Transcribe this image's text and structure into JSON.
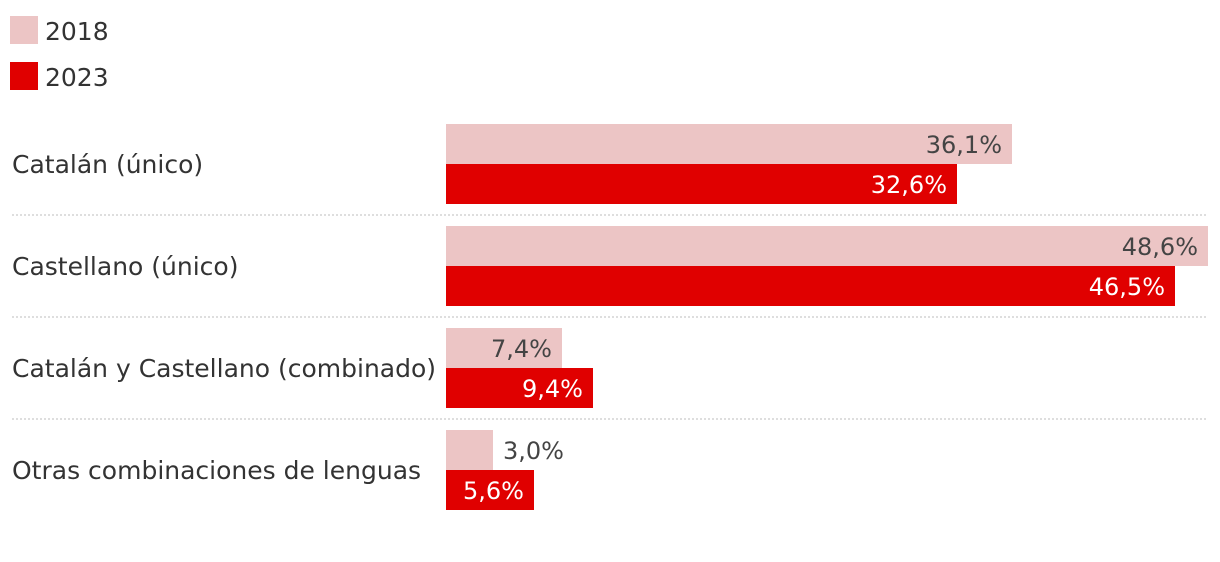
{
  "chart_data": {
    "type": "bar",
    "orientation": "horizontal",
    "categories": [
      "Catalán (único)",
      "Castellano (único)",
      "Catalán y Castellano (combinado)",
      "Otras combinaciones de lenguas"
    ],
    "series": [
      {
        "name": "2018",
        "color": "#ecc5c5",
        "values": [
          36.1,
          48.6,
          7.4,
          3.0
        ],
        "labels": [
          "36,1%",
          "48,6%",
          "7,4%",
          "3,0%"
        ]
      },
      {
        "name": "2023",
        "color": "#e00000",
        "values": [
          32.6,
          46.5,
          9.4,
          5.6
        ],
        "labels": [
          "32,6%",
          "46,5%",
          "9,4%",
          "5,6%"
        ]
      }
    ],
    "xlim": [
      0,
      48.6
    ],
    "unit": "%",
    "legend_position": "top-left",
    "grid": false
  }
}
